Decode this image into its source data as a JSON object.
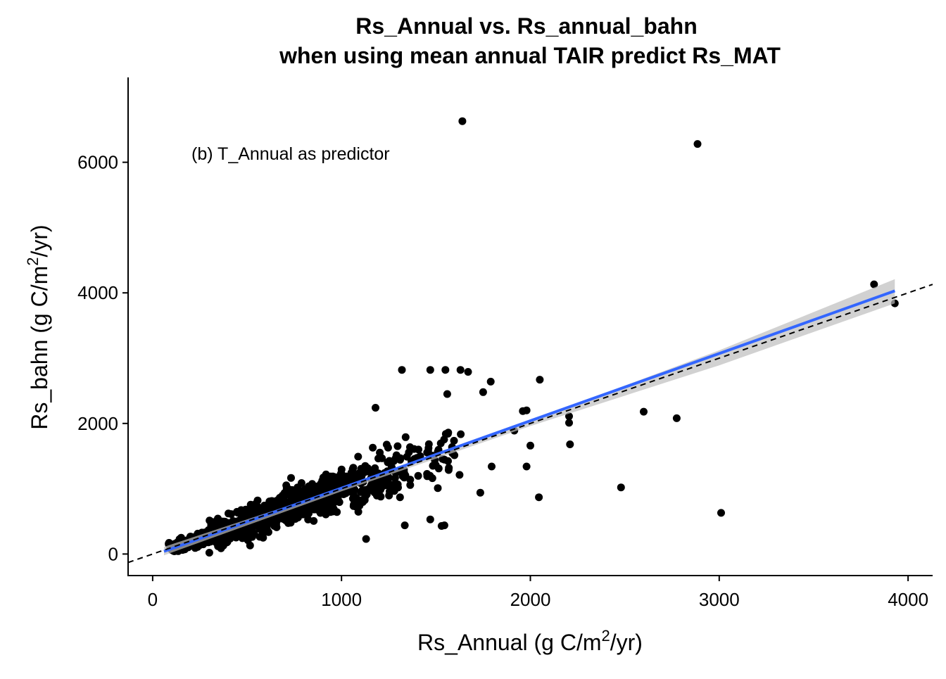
{
  "chart_data": {
    "type": "scatter",
    "title": "Rs_Annual vs. Rs_annual_bahn",
    "subtitle": "when using mean annual TAIR predict Rs_MAT",
    "xlabel": {
      "pre": "Rs_Annual (g C/m",
      "sup": "2",
      "post": "/yr)"
    },
    "ylabel": {
      "pre": "Rs_bahn (g C/m",
      "sup": "2",
      "post": "/yr)"
    },
    "annotation": "(b) T_Annual as predictor",
    "xlim": [
      -130,
      4130
    ],
    "ylim": [
      -330,
      7300
    ],
    "x_ticks": [
      0,
      1000,
      2000,
      3000,
      4000
    ],
    "y_ticks": [
      0,
      2000,
      4000,
      6000
    ],
    "x_tick_labels": [
      "0",
      "1000",
      "2000",
      "3000",
      "4000"
    ],
    "y_tick_labels": [
      "0",
      "2000",
      "4000",
      "6000"
    ],
    "colors": {
      "points": "#000000",
      "fit_line": "#3366FF",
      "ci_band": "#BEBEBE",
      "ref_line": "#000000"
    },
    "reference_line": {
      "style": "dashed",
      "slope": 1,
      "intercept": 0
    },
    "fit_line": {
      "x": [
        60,
        3930
      ],
      "y": [
        40,
        4030
      ]
    },
    "ci_band": {
      "x": [
        60,
        1000,
        2000,
        3000,
        3930
      ],
      "lower": [
        -20,
        960,
        1960,
        2890,
        3840
      ],
      "upper": [
        110,
        1010,
        2040,
        3120,
        4210
      ]
    },
    "outliers": {
      "x": [
        1640,
        2885,
        3820,
        3930,
        2600,
        2775,
        3010,
        2480,
        2210,
        2205,
        2050,
        2045,
        1320,
        1470,
        1550,
        1630,
        1670,
        1790,
        1560,
        1750,
        1980,
        1960,
        1915,
        2000,
        2205,
        1980,
        1795,
        1735,
        1510,
        1470,
        1530,
        1545,
        1335,
        1180,
        1130
      ],
      "y": [
        6630,
        6280,
        4130,
        3840,
        2180,
        2080,
        630,
        1020,
        1680,
        2010,
        2670,
        870,
        2820,
        2820,
        2820,
        2820,
        2790,
        2640,
        2450,
        2480,
        2200,
        2190,
        1890,
        1660,
        2110,
        1340,
        1340,
        940,
        1010,
        530,
        430,
        440,
        440,
        2240,
        230
      ]
    },
    "cloud_regions": [
      {
        "x": [
          80,
          300
        ],
        "slope": 0.9,
        "spread": 90,
        "n": 120
      },
      {
        "x": [
          300,
          700
        ],
        "slope": 0.95,
        "spread": 220,
        "n": 360
      },
      {
        "x": [
          700,
          1000
        ],
        "slope": 1.0,
        "spread": 270,
        "n": 260
      },
      {
        "x": [
          1000,
          1300
        ],
        "slope": 1.0,
        "spread": 320,
        "n": 130
      },
      {
        "x": [
          1300,
          1650
        ],
        "slope": 0.98,
        "spread": 380,
        "n": 55
      }
    ]
  }
}
